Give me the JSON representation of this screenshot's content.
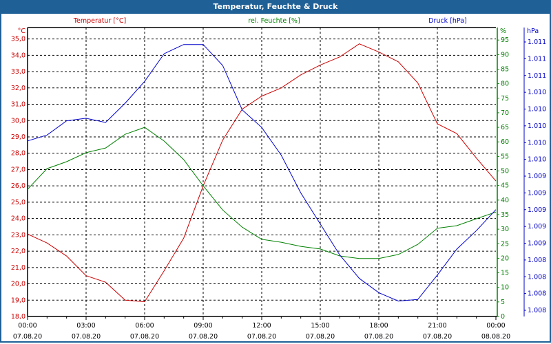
{
  "window": {
    "title": "Temperatur, Feuchte & Druck"
  },
  "colors": {
    "temperature": "#cc0000",
    "humidity": "#008000",
    "pressure": "#0000cc",
    "frame": "#1f6096"
  },
  "chart_data": {
    "type": "line",
    "title": "Temperatur, Feuchte & Druck",
    "x_hours": [
      0,
      1,
      2,
      3,
      4,
      5,
      6,
      7,
      8,
      9,
      10,
      11,
      12,
      13,
      14,
      15,
      16,
      17,
      18,
      19,
      20,
      21,
      22,
      23,
      24
    ],
    "x_ticks": [
      {
        "time": "00:00",
        "date": "07.08.20"
      },
      {
        "time": "03:00",
        "date": "07.08.20"
      },
      {
        "time": "06:00",
        "date": "07.08.20"
      },
      {
        "time": "09:00",
        "date": "07.08.20"
      },
      {
        "time": "12:00",
        "date": "07.08.20"
      },
      {
        "time": "15:00",
        "date": "07.08.20"
      },
      {
        "time": "18:00",
        "date": "07.08.20"
      },
      {
        "time": "21:00",
        "date": "07.08.20"
      },
      {
        "time": "00:00",
        "date": "08.08.20"
      }
    ],
    "series": [
      {
        "name": "Temperatur [°C]",
        "unit": "°C",
        "axis": "left",
        "values": [
          23.05,
          22.5,
          21.7,
          20.5,
          20.1,
          19.0,
          18.9,
          20.8,
          22.8,
          26.0,
          28.8,
          30.7,
          31.5,
          32.0,
          32.8,
          33.4,
          33.9,
          34.7,
          34.2,
          33.6,
          32.3,
          29.8,
          29.2,
          27.7,
          26.3
        ]
      },
      {
        "name": "rel. Feuchte [%]",
        "unit": "%",
        "axis": "right1",
        "values": [
          43.7,
          50.8,
          53.2,
          56.3,
          57.9,
          62.6,
          65.0,
          60.3,
          53.9,
          44.9,
          36.6,
          30.7,
          26.5,
          25.5,
          24.1,
          23.2,
          20.8,
          19.9,
          19.9,
          21.3,
          24.8,
          30.3,
          31.2,
          33.6,
          35.9
        ]
      },
      {
        "name": "Druck [hPa]",
        "unit": "hPa",
        "axis": "right2",
        "values": [
          1009.82,
          1009.89,
          1010.06,
          1010.09,
          1010.04,
          1010.27,
          1010.53,
          1010.86,
          1010.97,
          1010.97,
          1010.72,
          1010.19,
          1009.98,
          1009.65,
          1009.2,
          1008.83,
          1008.46,
          1008.18,
          1008.01,
          1007.91,
          1007.93,
          1008.22,
          1008.53,
          1008.75,
          1009.0
        ]
      }
    ],
    "left_axis": {
      "unit": "°C",
      "ylim": [
        18,
        35.7
      ],
      "ticks": [
        "18,0",
        "19,0",
        "20,0",
        "21,0",
        "22,0",
        "23,0",
        "24,0",
        "25,0",
        "26,0",
        "27,0",
        "28,0",
        "29,0",
        "30,0",
        "31,0",
        "32,0",
        "33,0",
        "34,0",
        "35,0"
      ]
    },
    "right1_axis": {
      "unit": "%",
      "ylim": [
        0,
        99.3
      ],
      "ticks": [
        "0",
        "5",
        "10",
        "15",
        "20",
        "25",
        "30",
        "35",
        "40",
        "45",
        "50",
        "55",
        "60",
        "65",
        "70",
        "75",
        "80",
        "85",
        "90",
        "95"
      ]
    },
    "right2_axis": {
      "unit": "hPa",
      "ylim": [
        1007.8,
        1011.0
      ],
      "ticks": [
        "1.008",
        "1.008",
        "1.008",
        "1.008",
        "1.009",
        "1.009",
        "1.009",
        "1.009",
        "1.009",
        "1.010",
        "1.010",
        "1.010",
        "1.010",
        "1.010",
        "1.011",
        "1.011",
        "1.011"
      ]
    },
    "grid": true
  }
}
